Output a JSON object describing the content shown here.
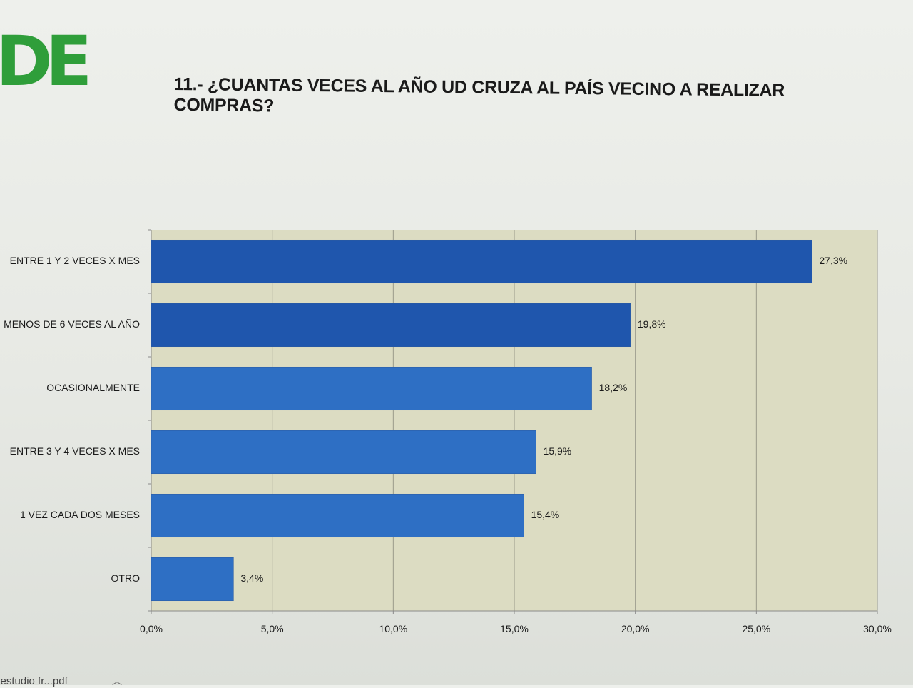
{
  "logo": "DE",
  "page_title": "11.- ¿CUANTAS VECES AL AÑO UD CRUZA AL PAÍS VECINO A REALIZAR COMPRAS?",
  "footer": {
    "tab_label": "e estudio fr...pdf",
    "chevron_icon": "chevron-up-icon"
  },
  "colors": {
    "bar": "#2e6fc4",
    "bar_dark": "#1f56ad",
    "plot_bg": "#dcdcc2",
    "logo": "#2f9e3a"
  },
  "chart_data": {
    "type": "bar",
    "orientation": "horizontal",
    "title": "11.- ¿CUANTAS VECES AL AÑO UD CRUZA AL PAÍS VECINO A REALIZAR COMPRAS?",
    "categories": [
      "ENTRE 1 Y 2 VECES X MES",
      "MENOS DE 6 VECES AL AÑO",
      "OCASIONALMENTE",
      "ENTRE 3 Y 4 VECES X MES",
      "1 VEZ CADA DOS MESES",
      "OTRO"
    ],
    "values": [
      27.3,
      19.8,
      18.2,
      15.9,
      15.4,
      3.4
    ],
    "value_labels": [
      "27,3%",
      "19,8%",
      "18,2%",
      "15,9%",
      "15,4%",
      "3,4%"
    ],
    "xlim": [
      0,
      30
    ],
    "x_ticks": [
      0,
      5,
      10,
      15,
      20,
      25,
      30
    ],
    "x_tick_labels": [
      "0,0%",
      "5,0%",
      "10,0%",
      "15,0%",
      "20,0%",
      "25,0%",
      "30,0%"
    ],
    "xlabel": "",
    "ylabel": "",
    "grid": "vertical",
    "legend": "none"
  }
}
